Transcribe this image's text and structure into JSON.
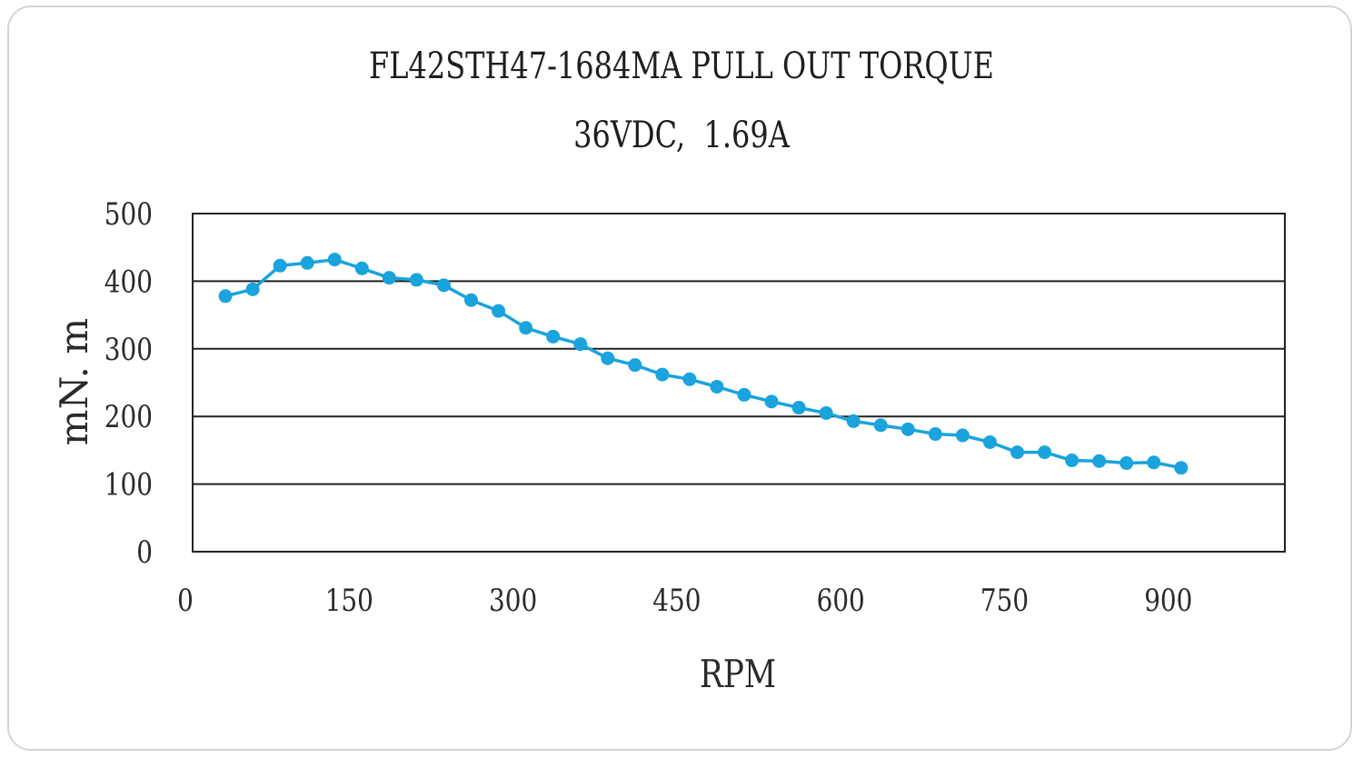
{
  "chart_data": {
    "type": "line",
    "title": "FL42STH47-1684MA PULL OUT TORQUE",
    "subtitle": "36VDC,  1.69A",
    "xlabel": "RPM",
    "ylabel": "mN. m",
    "xlim": [
      0,
      1000
    ],
    "ylim": [
      0,
      500
    ],
    "xticks": [
      0,
      150,
      300,
      450,
      600,
      750,
      900
    ],
    "yticks": [
      0,
      100,
      200,
      300,
      400,
      500
    ],
    "grid": "horizontal",
    "colors": {
      "series": "#1aa3dc",
      "grid": "#222222",
      "frame": "#222222"
    },
    "series": [
      {
        "x": [
          30,
          55,
          80,
          105,
          130,
          155,
          180,
          205,
          230,
          255,
          280,
          305,
          330,
          355,
          380,
          405,
          430,
          455,
          480,
          505,
          530,
          555,
          580,
          605,
          630,
          655,
          680,
          705,
          730,
          755,
          780,
          805,
          830,
          855,
          880,
          905
        ],
        "values": [
          378,
          388,
          423,
          427,
          432,
          419,
          405,
          402,
          394,
          372,
          356,
          331,
          318,
          307,
          286,
          276,
          262,
          255,
          244,
          232,
          222,
          213,
          205,
          193,
          187,
          181,
          174,
          172,
          162,
          147,
          147,
          135,
          134,
          131,
          132,
          124
        ]
      }
    ]
  }
}
